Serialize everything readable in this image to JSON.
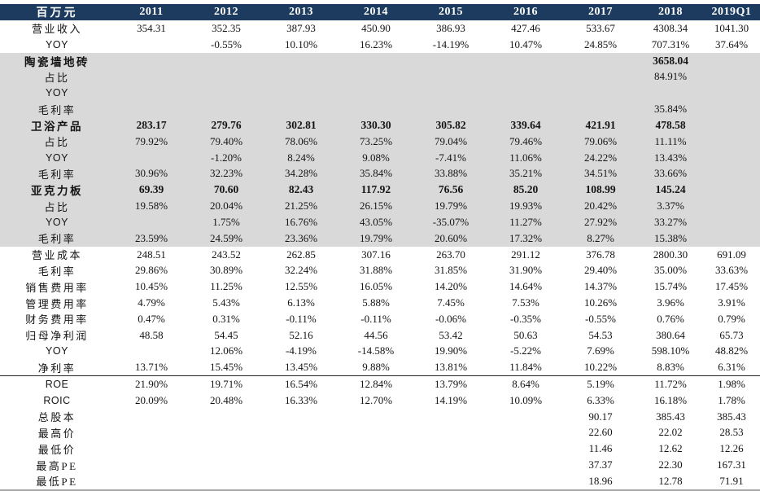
{
  "unit_label": "百万元",
  "columns": [
    "2011",
    "2012",
    "2013",
    "2014",
    "2015",
    "2016",
    "2017",
    "2018",
    "2019Q1"
  ],
  "colors": {
    "header_bg": "#1c3b5e",
    "header_text": "#ffffff",
    "band_bg": "#d9d9d9",
    "rule_color": "#262626",
    "bottom_border": "#a6a6a6",
    "text_color": "#141414"
  },
  "rows": [
    {
      "label": "营业收入",
      "bold": false,
      "band": false,
      "rule_top": false,
      "values": [
        "354.31",
        "352.35",
        "387.93",
        "450.90",
        "386.93",
        "427.46",
        "533.67",
        "4308.34",
        "1041.30"
      ]
    },
    {
      "label": "YOY",
      "bold": false,
      "band": false,
      "rule_top": false,
      "values": [
        "",
        "-0.55%",
        "10.10%",
        "16.23%",
        "-14.19%",
        "10.47%",
        "24.85%",
        "707.31%",
        "37.64%"
      ]
    },
    {
      "label": "陶瓷墙地砖",
      "bold": true,
      "band": true,
      "rule_top": false,
      "values": [
        "",
        "",
        "",
        "",
        "",
        "",
        "",
        "3658.04",
        ""
      ]
    },
    {
      "label": "占比",
      "bold": false,
      "band": true,
      "rule_top": false,
      "values": [
        "",
        "",
        "",
        "",
        "",
        "",
        "",
        "84.91%",
        ""
      ]
    },
    {
      "label": "YOY",
      "bold": false,
      "band": true,
      "rule_top": false,
      "values": [
        "",
        "",
        "",
        "",
        "",
        "",
        "",
        "",
        ""
      ]
    },
    {
      "label": "毛利率",
      "bold": false,
      "band": true,
      "rule_top": false,
      "values": [
        "",
        "",
        "",
        "",
        "",
        "",
        "",
        "35.84%",
        ""
      ]
    },
    {
      "label": "卫浴产品",
      "bold": true,
      "band": true,
      "rule_top": false,
      "values": [
        "283.17",
        "279.76",
        "302.81",
        "330.30",
        "305.82",
        "339.64",
        "421.91",
        "478.58",
        ""
      ]
    },
    {
      "label": "占比",
      "bold": false,
      "band": true,
      "rule_top": false,
      "values": [
        "79.92%",
        "79.40%",
        "78.06%",
        "73.25%",
        "79.04%",
        "79.46%",
        "79.06%",
        "11.11%",
        ""
      ]
    },
    {
      "label": "YOY",
      "bold": false,
      "band": true,
      "rule_top": false,
      "values": [
        "",
        "-1.20%",
        "8.24%",
        "9.08%",
        "-7.41%",
        "11.06%",
        "24.22%",
        "13.43%",
        ""
      ]
    },
    {
      "label": "毛利率",
      "bold": false,
      "band": true,
      "rule_top": false,
      "values": [
        "30.96%",
        "32.23%",
        "34.28%",
        "35.84%",
        "33.88%",
        "35.21%",
        "34.51%",
        "33.66%",
        ""
      ]
    },
    {
      "label": "亚克力板",
      "bold": true,
      "band": true,
      "rule_top": false,
      "values": [
        "69.39",
        "70.60",
        "82.43",
        "117.92",
        "76.56",
        "85.20",
        "108.99",
        "145.24",
        ""
      ]
    },
    {
      "label": "占比",
      "bold": false,
      "band": true,
      "rule_top": false,
      "values": [
        "19.58%",
        "20.04%",
        "21.25%",
        "26.15%",
        "19.79%",
        "19.93%",
        "20.42%",
        "3.37%",
        ""
      ]
    },
    {
      "label": "YOY",
      "bold": false,
      "band": true,
      "rule_top": false,
      "values": [
        "",
        "1.75%",
        "16.76%",
        "43.05%",
        "-35.07%",
        "11.27%",
        "27.92%",
        "33.27%",
        ""
      ]
    },
    {
      "label": "毛利率",
      "bold": false,
      "band": true,
      "rule_top": false,
      "values": [
        "23.59%",
        "24.59%",
        "23.36%",
        "19.79%",
        "20.60%",
        "17.32%",
        "8.27%",
        "15.38%",
        ""
      ]
    },
    {
      "label": "营业成本",
      "bold": false,
      "band": false,
      "rule_top": false,
      "values": [
        "248.51",
        "243.52",
        "262.85",
        "307.16",
        "263.70",
        "291.12",
        "376.78",
        "2800.30",
        "691.09"
      ]
    },
    {
      "label": "毛利率",
      "bold": false,
      "band": false,
      "rule_top": false,
      "values": [
        "29.86%",
        "30.89%",
        "32.24%",
        "31.88%",
        "31.85%",
        "31.90%",
        "29.40%",
        "35.00%",
        "33.63%"
      ]
    },
    {
      "label": "销售费用率",
      "bold": false,
      "band": false,
      "rule_top": false,
      "values": [
        "10.45%",
        "11.25%",
        "12.55%",
        "16.05%",
        "14.20%",
        "14.64%",
        "14.37%",
        "15.74%",
        "17.45%"
      ]
    },
    {
      "label": "管理费用率",
      "bold": false,
      "band": false,
      "rule_top": false,
      "values": [
        "4.79%",
        "5.43%",
        "6.13%",
        "5.88%",
        "7.45%",
        "7.53%",
        "10.26%",
        "3.96%",
        "3.91%"
      ]
    },
    {
      "label": "财务费用率",
      "bold": false,
      "band": false,
      "rule_top": false,
      "values": [
        "0.47%",
        "0.31%",
        "-0.11%",
        "-0.11%",
        "-0.06%",
        "-0.35%",
        "-0.55%",
        "0.76%",
        "0.79%"
      ]
    },
    {
      "label": "归母净利润",
      "bold": false,
      "band": false,
      "rule_top": false,
      "values": [
        "48.58",
        "54.45",
        "52.16",
        "44.56",
        "53.42",
        "50.63",
        "54.53",
        "380.64",
        "65.73"
      ]
    },
    {
      "label": "YOY",
      "bold": false,
      "band": false,
      "rule_top": false,
      "values": [
        "",
        "12.06%",
        "-4.19%",
        "-14.58%",
        "19.90%",
        "-5.22%",
        "7.69%",
        "598.10%",
        "48.82%"
      ]
    },
    {
      "label": "净利率",
      "bold": false,
      "band": false,
      "rule_top": false,
      "values": [
        "13.71%",
        "15.45%",
        "13.45%",
        "9.88%",
        "13.81%",
        "11.84%",
        "10.22%",
        "8.83%",
        "6.31%"
      ]
    },
    {
      "label": "ROE",
      "bold": false,
      "band": false,
      "rule_top": true,
      "values": [
        "21.90%",
        "19.71%",
        "16.54%",
        "12.84%",
        "13.79%",
        "8.64%",
        "5.19%",
        "11.72%",
        "1.98%"
      ]
    },
    {
      "label": "ROIC",
      "bold": false,
      "band": false,
      "rule_top": false,
      "values": [
        "20.09%",
        "20.48%",
        "16.33%",
        "12.70%",
        "14.19%",
        "10.09%",
        "6.33%",
        "16.18%",
        "1.78%"
      ]
    },
    {
      "label": "总股本",
      "bold": false,
      "band": false,
      "rule_top": false,
      "values": [
        "",
        "",
        "",
        "",
        "",
        "",
        "90.17",
        "385.43",
        "385.43"
      ]
    },
    {
      "label": "最高价",
      "bold": false,
      "band": false,
      "rule_top": false,
      "values": [
        "",
        "",
        "",
        "",
        "",
        "",
        "22.60",
        "22.02",
        "28.53"
      ]
    },
    {
      "label": "最低价",
      "bold": false,
      "band": false,
      "rule_top": false,
      "values": [
        "",
        "",
        "",
        "",
        "",
        "",
        "11.46",
        "12.62",
        "12.26"
      ]
    },
    {
      "label": "最高PE",
      "bold": false,
      "band": false,
      "rule_top": false,
      "values": [
        "",
        "",
        "",
        "",
        "",
        "",
        "37.37",
        "22.30",
        "167.31"
      ]
    },
    {
      "label": "最低PE",
      "bold": false,
      "band": false,
      "rule_top": false,
      "values": [
        "",
        "",
        "",
        "",
        "",
        "",
        "18.96",
        "12.78",
        "71.91"
      ]
    }
  ]
}
